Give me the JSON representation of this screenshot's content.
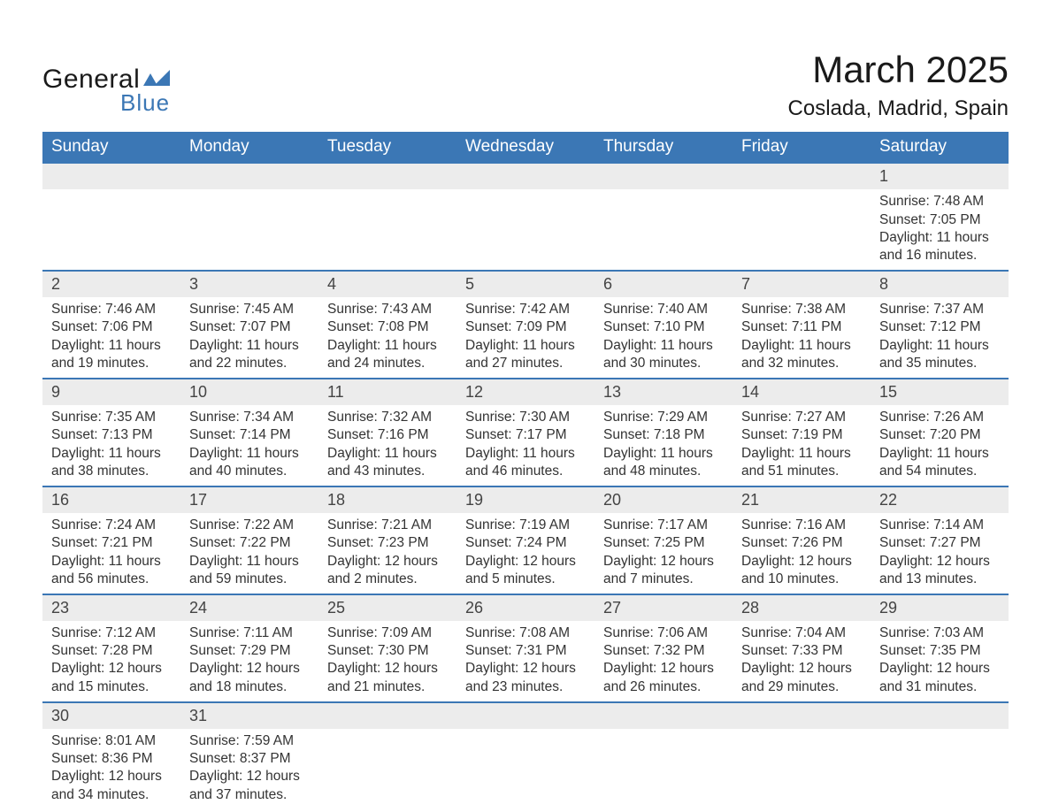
{
  "logo": {
    "text_general": "General",
    "text_blue": "Blue"
  },
  "title": {
    "month": "March 2025",
    "location": "Coslada, Madrid, Spain"
  },
  "colors": {
    "header_bg": "#3b77b5",
    "header_text": "#ffffff",
    "row_border": "#3b77b5",
    "daynum_bg": "#ececec",
    "body_text": "#333333",
    "background": "#ffffff"
  },
  "typography": {
    "title_fontsize": 42,
    "location_fontsize": 24,
    "dayheader_fontsize": 19,
    "daynum_fontsize": 18,
    "body_fontsize": 15.5,
    "font_family": "Arial"
  },
  "calendar": {
    "day_headers": [
      "Sunday",
      "Monday",
      "Tuesday",
      "Wednesday",
      "Thursday",
      "Friday",
      "Saturday"
    ],
    "first_day_column": 6,
    "days": [
      {
        "n": "1",
        "sunrise": "Sunrise: 7:48 AM",
        "sunset": "Sunset: 7:05 PM",
        "daylight": "Daylight: 11 hours and 16 minutes."
      },
      {
        "n": "2",
        "sunrise": "Sunrise: 7:46 AM",
        "sunset": "Sunset: 7:06 PM",
        "daylight": "Daylight: 11 hours and 19 minutes."
      },
      {
        "n": "3",
        "sunrise": "Sunrise: 7:45 AM",
        "sunset": "Sunset: 7:07 PM",
        "daylight": "Daylight: 11 hours and 22 minutes."
      },
      {
        "n": "4",
        "sunrise": "Sunrise: 7:43 AM",
        "sunset": "Sunset: 7:08 PM",
        "daylight": "Daylight: 11 hours and 24 minutes."
      },
      {
        "n": "5",
        "sunrise": "Sunrise: 7:42 AM",
        "sunset": "Sunset: 7:09 PM",
        "daylight": "Daylight: 11 hours and 27 minutes."
      },
      {
        "n": "6",
        "sunrise": "Sunrise: 7:40 AM",
        "sunset": "Sunset: 7:10 PM",
        "daylight": "Daylight: 11 hours and 30 minutes."
      },
      {
        "n": "7",
        "sunrise": "Sunrise: 7:38 AM",
        "sunset": "Sunset: 7:11 PM",
        "daylight": "Daylight: 11 hours and 32 minutes."
      },
      {
        "n": "8",
        "sunrise": "Sunrise: 7:37 AM",
        "sunset": "Sunset: 7:12 PM",
        "daylight": "Daylight: 11 hours and 35 minutes."
      },
      {
        "n": "9",
        "sunrise": "Sunrise: 7:35 AM",
        "sunset": "Sunset: 7:13 PM",
        "daylight": "Daylight: 11 hours and 38 minutes."
      },
      {
        "n": "10",
        "sunrise": "Sunrise: 7:34 AM",
        "sunset": "Sunset: 7:14 PM",
        "daylight": "Daylight: 11 hours and 40 minutes."
      },
      {
        "n": "11",
        "sunrise": "Sunrise: 7:32 AM",
        "sunset": "Sunset: 7:16 PM",
        "daylight": "Daylight: 11 hours and 43 minutes."
      },
      {
        "n": "12",
        "sunrise": "Sunrise: 7:30 AM",
        "sunset": "Sunset: 7:17 PM",
        "daylight": "Daylight: 11 hours and 46 minutes."
      },
      {
        "n": "13",
        "sunrise": "Sunrise: 7:29 AM",
        "sunset": "Sunset: 7:18 PM",
        "daylight": "Daylight: 11 hours and 48 minutes."
      },
      {
        "n": "14",
        "sunrise": "Sunrise: 7:27 AM",
        "sunset": "Sunset: 7:19 PM",
        "daylight": "Daylight: 11 hours and 51 minutes."
      },
      {
        "n": "15",
        "sunrise": "Sunrise: 7:26 AM",
        "sunset": "Sunset: 7:20 PM",
        "daylight": "Daylight: 11 hours and 54 minutes."
      },
      {
        "n": "16",
        "sunrise": "Sunrise: 7:24 AM",
        "sunset": "Sunset: 7:21 PM",
        "daylight": "Daylight: 11 hours and 56 minutes."
      },
      {
        "n": "17",
        "sunrise": "Sunrise: 7:22 AM",
        "sunset": "Sunset: 7:22 PM",
        "daylight": "Daylight: 11 hours and 59 minutes."
      },
      {
        "n": "18",
        "sunrise": "Sunrise: 7:21 AM",
        "sunset": "Sunset: 7:23 PM",
        "daylight": "Daylight: 12 hours and 2 minutes."
      },
      {
        "n": "19",
        "sunrise": "Sunrise: 7:19 AM",
        "sunset": "Sunset: 7:24 PM",
        "daylight": "Daylight: 12 hours and 5 minutes."
      },
      {
        "n": "20",
        "sunrise": "Sunrise: 7:17 AM",
        "sunset": "Sunset: 7:25 PM",
        "daylight": "Daylight: 12 hours and 7 minutes."
      },
      {
        "n": "21",
        "sunrise": "Sunrise: 7:16 AM",
        "sunset": "Sunset: 7:26 PM",
        "daylight": "Daylight: 12 hours and 10 minutes."
      },
      {
        "n": "22",
        "sunrise": "Sunrise: 7:14 AM",
        "sunset": "Sunset: 7:27 PM",
        "daylight": "Daylight: 12 hours and 13 minutes."
      },
      {
        "n": "23",
        "sunrise": "Sunrise: 7:12 AM",
        "sunset": "Sunset: 7:28 PM",
        "daylight": "Daylight: 12 hours and 15 minutes."
      },
      {
        "n": "24",
        "sunrise": "Sunrise: 7:11 AM",
        "sunset": "Sunset: 7:29 PM",
        "daylight": "Daylight: 12 hours and 18 minutes."
      },
      {
        "n": "25",
        "sunrise": "Sunrise: 7:09 AM",
        "sunset": "Sunset: 7:30 PM",
        "daylight": "Daylight: 12 hours and 21 minutes."
      },
      {
        "n": "26",
        "sunrise": "Sunrise: 7:08 AM",
        "sunset": "Sunset: 7:31 PM",
        "daylight": "Daylight: 12 hours and 23 minutes."
      },
      {
        "n": "27",
        "sunrise": "Sunrise: 7:06 AM",
        "sunset": "Sunset: 7:32 PM",
        "daylight": "Daylight: 12 hours and 26 minutes."
      },
      {
        "n": "28",
        "sunrise": "Sunrise: 7:04 AM",
        "sunset": "Sunset: 7:33 PM",
        "daylight": "Daylight: 12 hours and 29 minutes."
      },
      {
        "n": "29",
        "sunrise": "Sunrise: 7:03 AM",
        "sunset": "Sunset: 7:35 PM",
        "daylight": "Daylight: 12 hours and 31 minutes."
      },
      {
        "n": "30",
        "sunrise": "Sunrise: 8:01 AM",
        "sunset": "Sunset: 8:36 PM",
        "daylight": "Daylight: 12 hours and 34 minutes."
      },
      {
        "n": "31",
        "sunrise": "Sunrise: 7:59 AM",
        "sunset": "Sunset: 8:37 PM",
        "daylight": "Daylight: 12 hours and 37 minutes."
      }
    ]
  }
}
